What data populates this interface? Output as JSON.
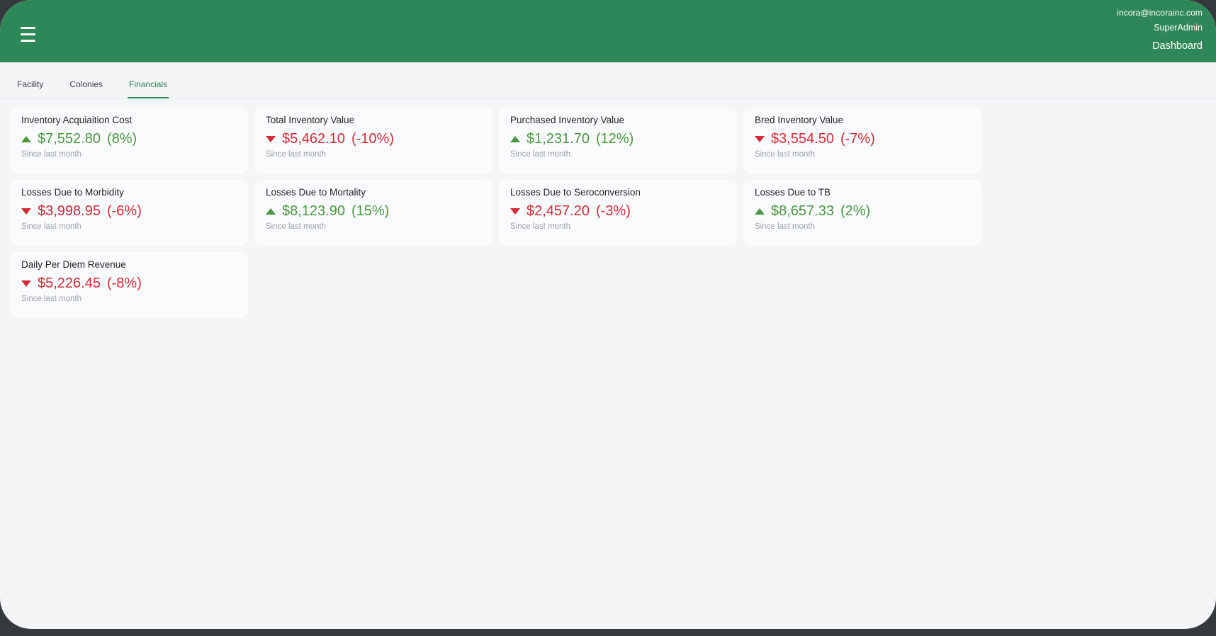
{
  "header": {
    "user_email": "incora@incorainc.com",
    "user_role": "SuperAdmin",
    "page_title": "Dashboard"
  },
  "tabs": [
    {
      "label": "Facility",
      "active": false
    },
    {
      "label": "Colonies",
      "active": false
    },
    {
      "label": "Financials",
      "active": true
    }
  ],
  "theme": {
    "header_green": "#2e8757",
    "positive_green": "#4a9840",
    "negative_red": "#d12b36"
  },
  "cards": [
    {
      "title": "Inventory Acquiaition Cost",
      "value": "$7,552.80",
      "change": "(8%)",
      "trend": "up",
      "caption": "Since last month"
    },
    {
      "title": "Total Inventory Value",
      "value": "$5,462.10",
      "change": "(-10%)",
      "trend": "down",
      "caption": "Since last month"
    },
    {
      "title": "Purchased Inventory Value",
      "value": "$1,231.70",
      "change": "(12%)",
      "trend": "up",
      "caption": "Since last month"
    },
    {
      "title": "Bred Inventory Value",
      "value": "$3,554.50",
      "change": "(-7%)",
      "trend": "down",
      "caption": "Since last month"
    },
    {
      "title": "Losses Due to Morbidity",
      "value": "$3,998.95",
      "change": "(-6%)",
      "trend": "down",
      "caption": "Since last month"
    },
    {
      "title": "Losses Due to Mortality",
      "value": "$8,123.90",
      "change": "(15%)",
      "trend": "up",
      "caption": "Since last month"
    },
    {
      "title": "Losses Due to Seroconversion",
      "value": "$2,457.20",
      "change": "(-3%)",
      "trend": "down",
      "caption": "Since last month"
    },
    {
      "title": "Losses Due to TB",
      "value": "$8,657.33",
      "change": "(2%)",
      "trend": "up",
      "caption": "Since last month"
    },
    {
      "title": "Daily Per Diem Revenue",
      "value": "$5,226.45",
      "change": "(-8%)",
      "trend": "down",
      "caption": "Since last month"
    }
  ]
}
